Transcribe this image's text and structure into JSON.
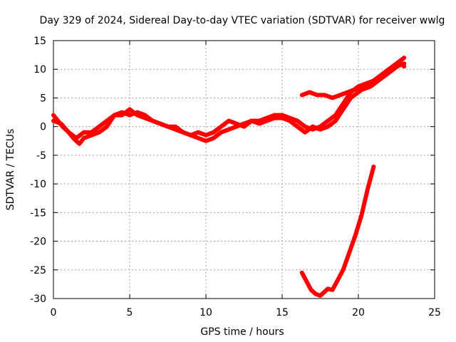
{
  "chart_data": {
    "type": "line",
    "title": "Day 329 of 2024, Sidereal Day-to-day VTEC variation (SDTVAR) for receiver wwlg",
    "xlabel": "GPS time / hours",
    "ylabel": "SDTVAR / TECUs",
    "xlim": [
      0,
      25
    ],
    "ylim": [
      -30,
      15
    ],
    "xticks": [
      0,
      5,
      10,
      15,
      20,
      25
    ],
    "yticks": [
      15,
      10,
      5,
      0,
      -5,
      -10,
      -15,
      -20,
      -25,
      -30
    ],
    "grid": true,
    "series_color": "#ff0000",
    "series": [
      {
        "name": "main-trace-a",
        "x": [
          0,
          0.3,
          0.6,
          1.0,
          1.3,
          1.7,
          2.0,
          2.5,
          3.0,
          3.5,
          4.0,
          4.5,
          5.0,
          5.5,
          6.0,
          6.5,
          7.0,
          7.5,
          8.0,
          8.5,
          9.0,
          9.5,
          10.0,
          10.5,
          11.0,
          11.5,
          12.0,
          12.5,
          13.0,
          13.5,
          14.0,
          14.5,
          15.0,
          15.5,
          16.0,
          16.5,
          17.0,
          17.5,
          18.0,
          18.5,
          19.0,
          19.5,
          20.0,
          20.5,
          21.0,
          21.5,
          22.0,
          22.5,
          23.0
        ],
        "y": [
          2,
          1,
          0,
          -1,
          -2,
          -3,
          -2,
          -1.5,
          -1,
          0,
          2,
          2.5,
          2,
          2.5,
          2,
          1,
          0.5,
          0,
          -0.5,
          -1,
          -1.5,
          -2,
          -2.5,
          -2,
          -1,
          -0.5,
          0,
          0.5,
          1,
          0.5,
          1,
          1.5,
          1.5,
          1,
          0,
          -1,
          0,
          -0.5,
          0,
          1,
          3,
          5,
          6,
          7,
          8,
          9,
          10,
          11,
          12
        ]
      },
      {
        "name": "main-trace-b",
        "x": [
          0,
          0.5,
          1.0,
          1.5,
          2.0,
          2.5,
          3.0,
          3.5,
          4.0,
          4.5,
          5.0,
          5.5,
          6.0,
          6.5,
          7.0,
          7.5,
          8.0,
          8.5,
          9.0,
          9.5,
          10.0,
          10.5,
          11.0,
          11.5,
          12.0,
          12.5,
          13.0,
          13.5,
          14.0,
          14.5,
          15.0,
          15.5,
          16.0,
          16.5,
          17.0,
          17.5,
          18.0,
          18.5,
          19.0,
          19.5,
          20.0,
          20.5,
          21.0,
          21.5,
          22.0,
          22.5,
          23.0
        ],
        "y": [
          1,
          0.5,
          -1,
          -2,
          -1,
          -1,
          0,
          1,
          2,
          2,
          3,
          2,
          1.5,
          1,
          0.5,
          0,
          0,
          -1,
          -1.5,
          -1,
          -1.5,
          -1,
          0,
          1,
          0.5,
          0,
          1,
          1,
          1.5,
          2,
          2,
          1.5,
          1,
          0,
          -0.5,
          0,
          1,
          2,
          4,
          6,
          7,
          7.5,
          8,
          9,
          10,
          10.5,
          11
        ]
      },
      {
        "name": "upper-branch",
        "x": [
          16.3,
          16.8,
          17.3,
          17.8,
          18.3,
          18.8,
          19.3,
          19.8,
          20.3,
          20.8,
          21.3,
          21.8,
          22.3,
          22.8,
          23.0
        ],
        "y": [
          5.5,
          6,
          5.5,
          5.5,
          5,
          5.5,
          6,
          6.5,
          6.5,
          7,
          8,
          9,
          10,
          11,
          10.5
        ]
      },
      {
        "name": "lower-branch",
        "x": [
          16.3,
          16.6,
          16.9,
          17.2,
          17.5,
          17.8,
          18.0,
          18.3,
          18.6,
          19.0,
          19.4,
          19.8,
          20.2,
          20.6,
          21.0
        ],
        "y": [
          -25.5,
          -27,
          -28.5,
          -29.2,
          -29.5,
          -28.8,
          -28.3,
          -28.5,
          -27,
          -25,
          -22,
          -19,
          -15.5,
          -11,
          -7
        ]
      }
    ]
  }
}
